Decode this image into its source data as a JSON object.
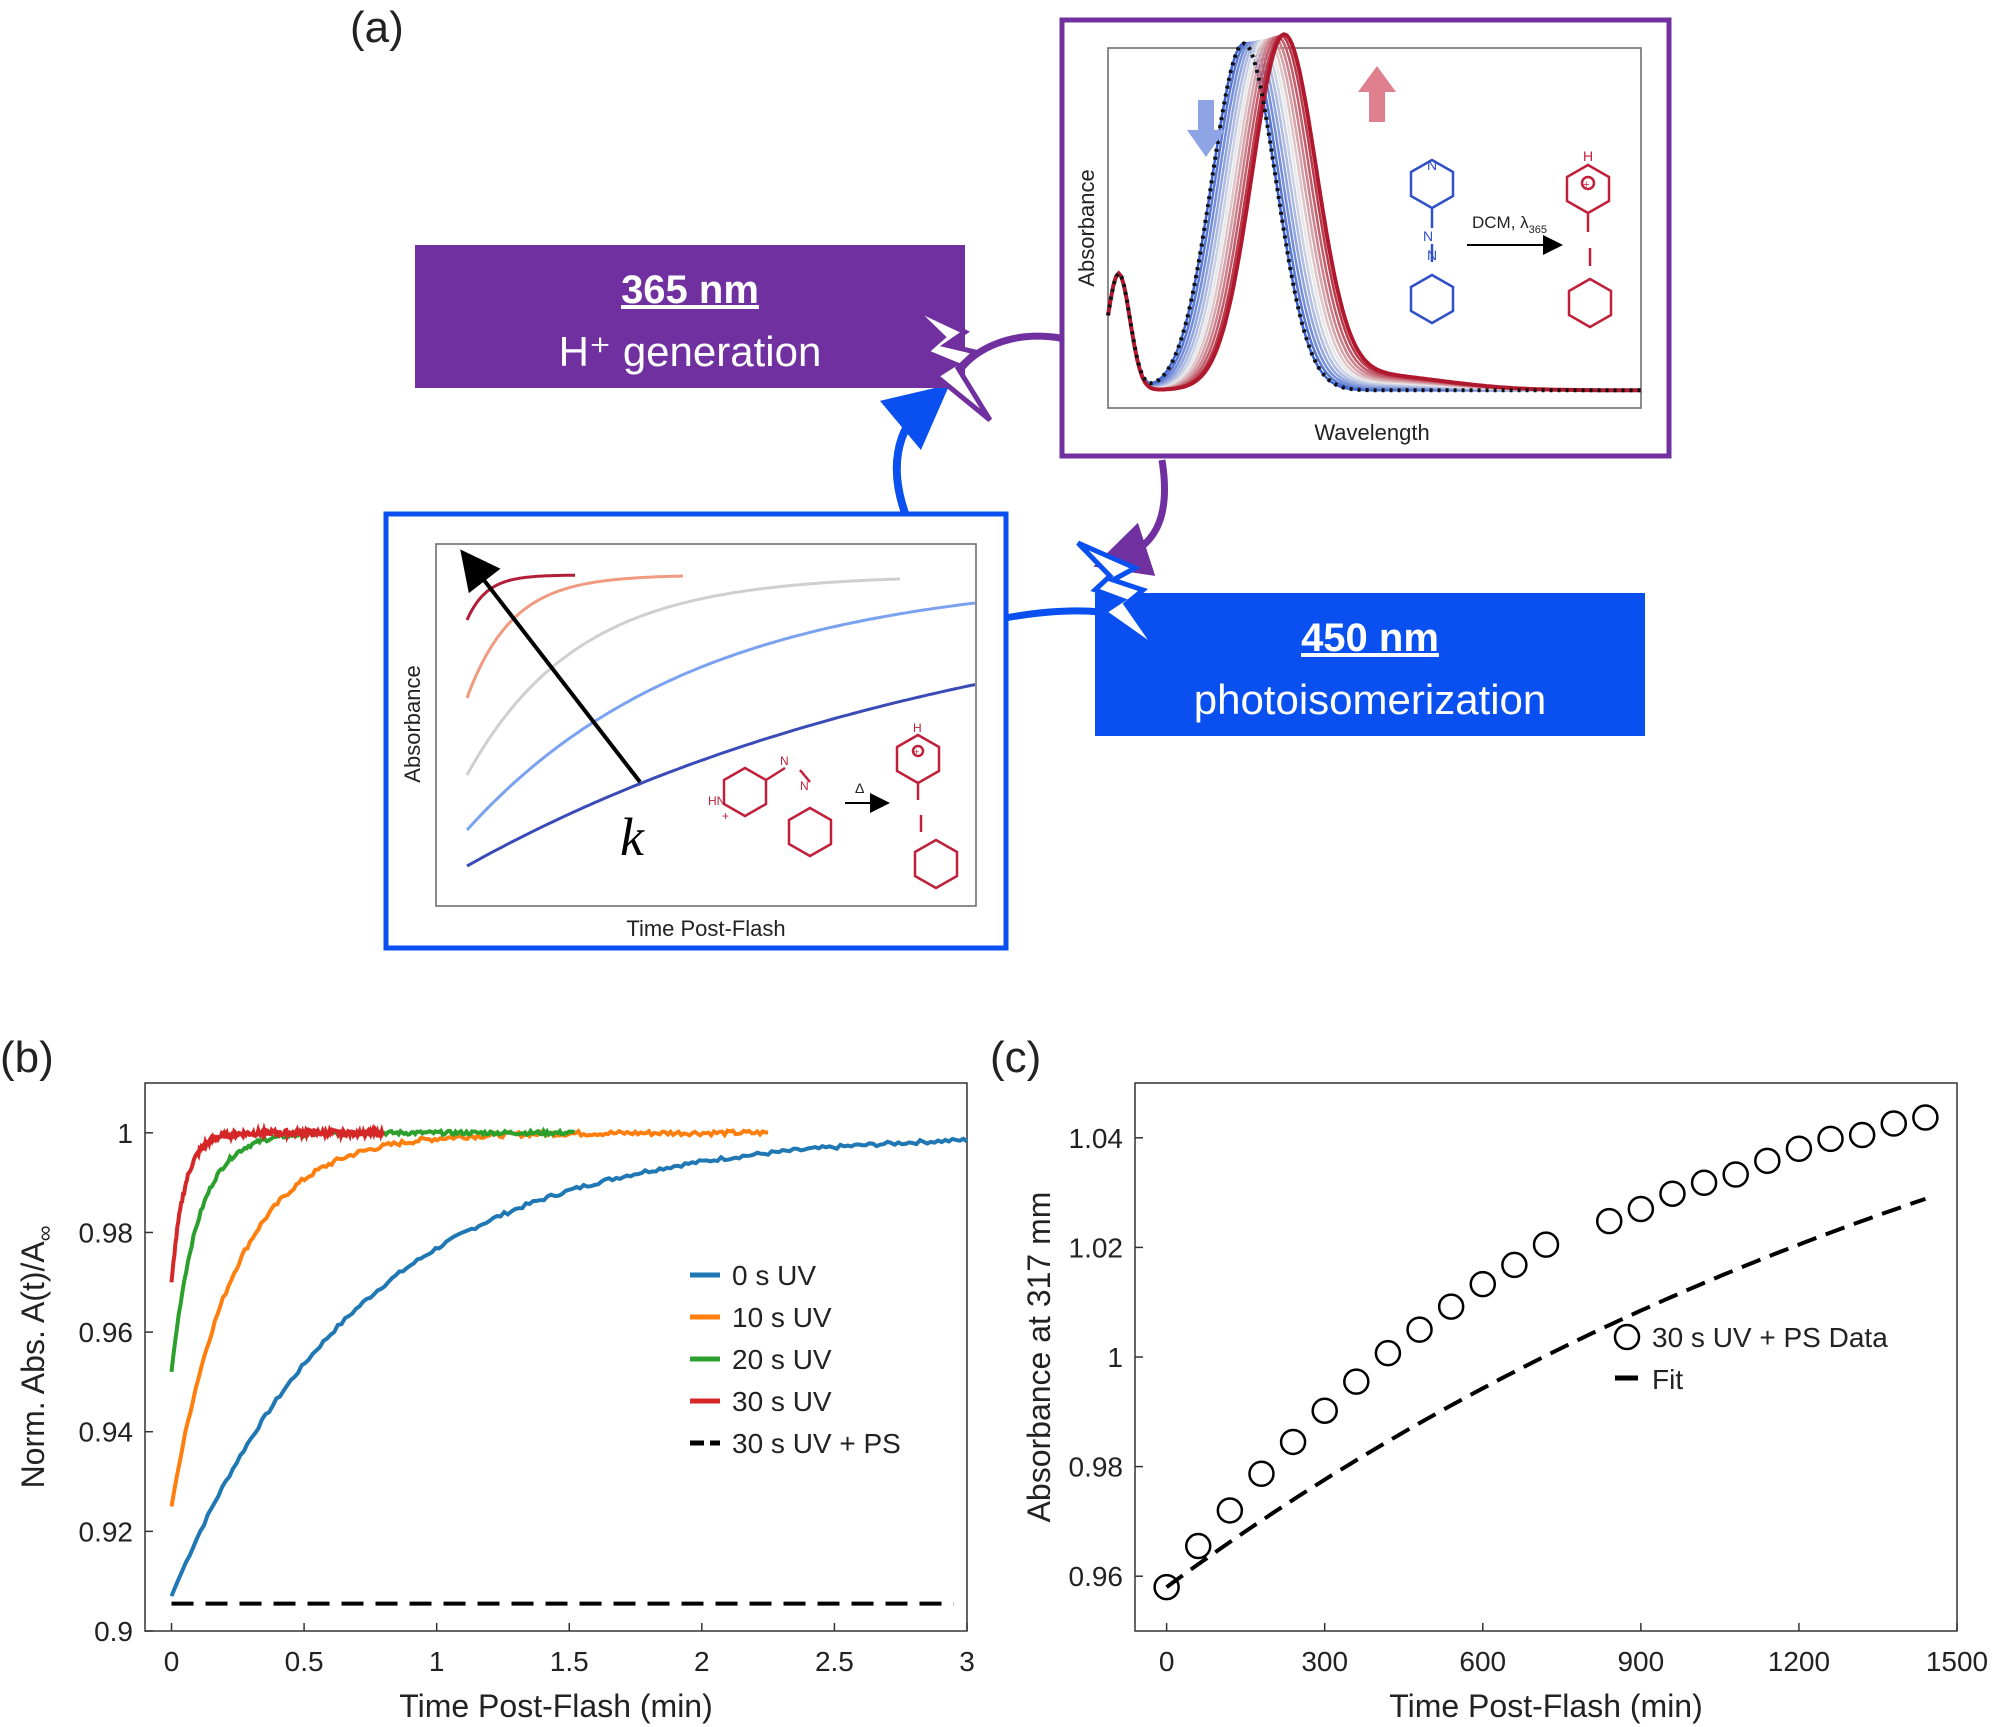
{
  "panel_labels": {
    "a": "(a)",
    "b": "(b)",
    "c": "(c)"
  },
  "colors": {
    "purple": "#7030a0",
    "blue": "#0a50f0",
    "molecule_blue": "#3050c8",
    "molecule_red": "#c0203a",
    "series_blue": "#1f77b4",
    "series_orange": "#ff7f0e",
    "series_green": "#2ca02c",
    "series_red": "#d62728"
  },
  "schematic": {
    "box_365": {
      "title": "365 nm",
      "subtitle": "H⁺ generation"
    },
    "box_450": {
      "title": "450 nm",
      "subtitle": "photoisomerization"
    },
    "spectrum_inset": {
      "xlabel": "Wavelength",
      "ylabel": "Absorbance",
      "reaction_label": "DCM, λ",
      "reaction_sub": "365",
      "pyridine_n": "N",
      "azo_n1": "N",
      "azo_n2": "N",
      "pyridinium_h": "H",
      "plus": "+"
    },
    "kinetics_inset": {
      "xlabel": "Time Post-Flash",
      "ylabel": "Absorbance",
      "arrow_label": "k",
      "reaction_label": "Δ",
      "hn_label": "HN",
      "h_label": "H",
      "azo_n1": "N",
      "azo_n2": "N",
      "plus": "+"
    },
    "icons": [
      "lightning-bolt-icon",
      "circular-arrow-icon"
    ]
  },
  "chart_data": [
    {
      "id": "b",
      "type": "line",
      "xlabel": "Time Post-Flash (min)",
      "ylabel": "Norm. Abs. A(t)/A",
      "ylabel_sub": "∞",
      "xlim": [
        -0.1,
        3
      ],
      "ylim": [
        0.9,
        1.01
      ],
      "xticks": [
        0,
        0.5,
        1,
        1.5,
        2,
        2.5,
        3
      ],
      "xtick_labels": [
        "0",
        "0.5",
        "1",
        "1.5",
        "2",
        "2.5",
        "3"
      ],
      "yticks": [
        0.9,
        0.92,
        0.94,
        0.96,
        0.98,
        1
      ],
      "ytick_labels": [
        "0.9",
        "0.92",
        "0.94",
        "0.96",
        "0.98",
        "1"
      ],
      "series": [
        {
          "name": "0 s UV",
          "color": "#1f77b4",
          "start": 0.907,
          "tau": 0.72,
          "tmax": 3.0,
          "noise": 0.0004
        },
        {
          "name": "10 s UV",
          "color": "#ff7f0e",
          "start": 0.925,
          "tau": 0.24,
          "tmax": 2.25,
          "noise": 0.0005
        },
        {
          "name": "20 s UV",
          "color": "#2ca02c",
          "start": 0.952,
          "tau": 0.1,
          "tmax": 1.52,
          "noise": 0.0004
        },
        {
          "name": "30 s UV",
          "color": "#d62728",
          "start": 0.97,
          "tau": 0.05,
          "tmax": 0.8,
          "noise": 0.0006
        },
        {
          "name": "30 s UV + PS",
          "color": "#000000",
          "constant": 0.9055,
          "tmax": 2.95,
          "dashed": true
        }
      ],
      "legend": [
        "0 s UV",
        "10 s UV",
        "20 s UV",
        "30 s UV",
        "30 s UV + PS"
      ],
      "legend_position": "right-middle"
    },
    {
      "id": "c",
      "type": "scatter",
      "xlabel": "Time Post-Flash (min)",
      "ylabel": "Absorbance at 317 mm",
      "xlim": [
        -60,
        1500
      ],
      "ylim": [
        0.95,
        1.05
      ],
      "xticks": [
        0,
        300,
        600,
        900,
        1200,
        1500
      ],
      "xtick_labels": [
        "0",
        "300",
        "600",
        "900",
        "1200",
        "1500"
      ],
      "yticks": [
        0.96,
        0.98,
        1,
        1.02,
        1.04
      ],
      "ytick_labels": [
        "0.96",
        "0.98",
        "1",
        "1.02",
        "1.04"
      ],
      "x": [
        0,
        60,
        120,
        180,
        240,
        300,
        360,
        420,
        480,
        540,
        600,
        660,
        720,
        840,
        900,
        960,
        1020,
        1080,
        1140,
        1200,
        1260,
        1320,
        1380,
        1440
      ],
      "y": [
        0.958,
        0.9655,
        0.972,
        0.9787,
        0.9845,
        0.9902,
        0.9955,
        1.0007,
        1.005,
        1.0092,
        1.0133,
        1.0168,
        1.0205,
        1.0248,
        1.027,
        1.0298,
        1.0318,
        1.0333,
        1.0358,
        1.038,
        1.0398,
        1.0405,
        1.0426,
        1.0437
      ],
      "fit": {
        "a": 1.089,
        "b": 0.131,
        "tau": 1850
      },
      "legend": [
        "30 s UV + PS Data",
        "Fit"
      ],
      "legend_position": "right-middle"
    }
  ]
}
